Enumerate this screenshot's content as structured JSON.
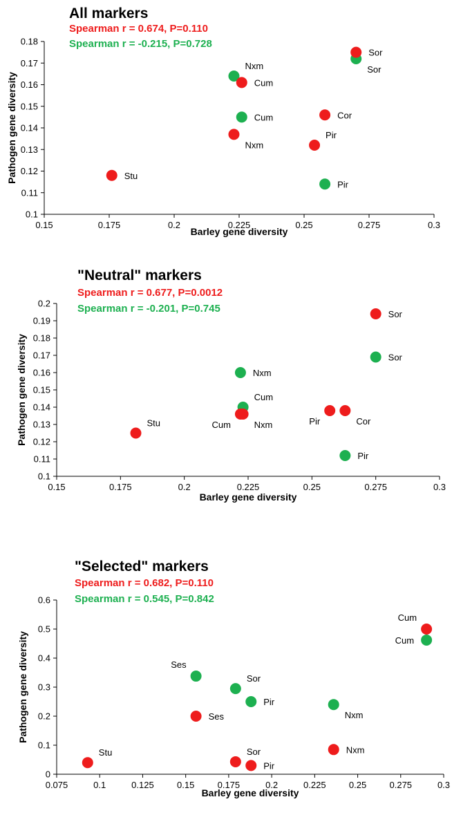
{
  "colors": {
    "red": "#ee1c1c",
    "green": "#1db050"
  },
  "chart_data": [
    {
      "type": "scatter",
      "title": "All markers",
      "stats": [
        {
          "text": "Spearman r = 0.674, P=0.110",
          "color": "red"
        },
        {
          "text": "Spearman r = -0.215, P=0.728",
          "color": "green"
        }
      ],
      "xlabel": "Barley gene diversity",
      "ylabel": "Pathogen  gene diversity",
      "xlim": [
        0.15,
        0.3
      ],
      "ylim": [
        0.1,
        0.18
      ],
      "xticks": [
        "0.15",
        "0.175",
        "0.2",
        "0.225",
        "0.25",
        "0.275",
        "0.3"
      ],
      "yticks": [
        "0.1",
        "0.11",
        "0.12",
        "0.13",
        "0.14",
        "0.15",
        "0.16",
        "0.17",
        "0.18"
      ],
      "points": [
        {
          "x": 0.176,
          "y": 0.118,
          "color": "red",
          "label": "Stu",
          "pos": "right"
        },
        {
          "x": 0.223,
          "y": 0.137,
          "color": "red",
          "label": "Nxm",
          "pos": "below-right"
        },
        {
          "x": 0.226,
          "y": 0.161,
          "color": "red",
          "label": "Cum",
          "pos": "right"
        },
        {
          "x": 0.254,
          "y": 0.132,
          "color": "red",
          "label": "Pir",
          "pos": "above-right"
        },
        {
          "x": 0.258,
          "y": 0.146,
          "color": "red",
          "label": "Cor",
          "pos": "right"
        },
        {
          "x": 0.27,
          "y": 0.175,
          "color": "red",
          "label": "Sor",
          "pos": "right"
        },
        {
          "x": 0.223,
          "y": 0.164,
          "color": "green",
          "label": "Nxm",
          "pos": "above-right"
        },
        {
          "x": 0.226,
          "y": 0.145,
          "color": "green",
          "label": "Cum",
          "pos": "right"
        },
        {
          "x": 0.258,
          "y": 0.114,
          "color": "green",
          "label": "Pir",
          "pos": "right"
        },
        {
          "x": 0.27,
          "y": 0.172,
          "color": "green",
          "label": "Sor",
          "pos": "below-right"
        }
      ]
    },
    {
      "type": "scatter",
      "title": "\"Neutral\" markers",
      "stats": [
        {
          "text": "Spearman r = 0.677, P=0.0012",
          "color": "red"
        },
        {
          "text": "Spearman r = -0.201, P=0.745",
          "color": "green"
        }
      ],
      "xlabel": "Barley gene diversity",
      "ylabel": "Pathogen  gene diversity",
      "xlim": [
        0.15,
        0.3
      ],
      "ylim": [
        0.1,
        0.2
      ],
      "xticks": [
        "0.15",
        "0.175",
        "0.2",
        "0.225",
        "0.25",
        "0.275",
        "0.3"
      ],
      "yticks": [
        "0.1",
        "0.11",
        "0.12",
        "0.13",
        "0.14",
        "0.15",
        "0.16",
        "0.17",
        "0.18",
        "0.19",
        "0.2"
      ],
      "points": [
        {
          "x": 0.181,
          "y": 0.125,
          "color": "red",
          "label": "Stu",
          "pos": "above-right"
        },
        {
          "x": 0.222,
          "y": 0.136,
          "color": "red",
          "label": "Cum",
          "pos": "below-left"
        },
        {
          "x": 0.223,
          "y": 0.136,
          "color": "red",
          "label": "Nxm",
          "pos": "below-right"
        },
        {
          "x": 0.257,
          "y": 0.138,
          "color": "red",
          "label": "Pir",
          "pos": "below-left"
        },
        {
          "x": 0.263,
          "y": 0.138,
          "color": "red",
          "label": "Cor",
          "pos": "below-right"
        },
        {
          "x": 0.275,
          "y": 0.194,
          "color": "red",
          "label": "Sor",
          "pos": "right"
        },
        {
          "x": 0.222,
          "y": 0.16,
          "color": "green",
          "label": "Nxm",
          "pos": "right"
        },
        {
          "x": 0.223,
          "y": 0.14,
          "color": "green",
          "label": "Cum",
          "pos": "above-right"
        },
        {
          "x": 0.263,
          "y": 0.112,
          "color": "green",
          "label": "Pir",
          "pos": "right"
        },
        {
          "x": 0.263,
          "y": 0.138,
          "color": "green",
          "label": "Cor",
          "pos": "above-right",
          "hidden": true
        },
        {
          "x": 0.275,
          "y": 0.169,
          "color": "green",
          "label": "Sor",
          "pos": "right"
        }
      ]
    },
    {
      "type": "scatter",
      "title": "\"Selected\" markers",
      "stats": [
        {
          "text": "Spearman r = 0.682, P=0.110",
          "color": "red"
        },
        {
          "text": "Spearman r = 0.545, P=0.842",
          "color": "green"
        }
      ],
      "xlabel": "Barley gene diversity",
      "ylabel": "Pathogen  gene diversity",
      "xlim": [
        0.075,
        0.3
      ],
      "ylim": [
        0,
        0.6
      ],
      "xticks": [
        "0.075",
        "0.1",
        "0.125",
        "0.15",
        "0.175",
        "0.2",
        "0.225",
        "0.25",
        "0.275",
        "0.3"
      ],
      "yticks": [
        "0",
        "0.1",
        "0.2",
        "0.3",
        "0.4",
        "0.5",
        "0.6"
      ],
      "points": [
        {
          "x": 0.093,
          "y": 0.04,
          "color": "red",
          "label": "Stu",
          "pos": "above-right"
        },
        {
          "x": 0.156,
          "y": 0.2,
          "color": "red",
          "label": "Ses",
          "pos": "right"
        },
        {
          "x": 0.179,
          "y": 0.043,
          "color": "red",
          "label": "Sor",
          "pos": "above-right"
        },
        {
          "x": 0.188,
          "y": 0.03,
          "color": "red",
          "label": "Pir",
          "pos": "right"
        },
        {
          "x": 0.236,
          "y": 0.085,
          "color": "red",
          "label": "Nxm",
          "pos": "right"
        },
        {
          "x": 0.29,
          "y": 0.5,
          "color": "red",
          "label": "Cum",
          "pos": "above-left"
        },
        {
          "x": 0.156,
          "y": 0.338,
          "color": "green",
          "label": "Ses",
          "pos": "above-left"
        },
        {
          "x": 0.179,
          "y": 0.295,
          "color": "green",
          "label": "Sor",
          "pos": "above-right"
        },
        {
          "x": 0.188,
          "y": 0.25,
          "color": "green",
          "label": "Pir",
          "pos": "right"
        },
        {
          "x": 0.236,
          "y": 0.24,
          "color": "green",
          "label": "Nxm",
          "pos": "below-right"
        },
        {
          "x": 0.29,
          "y": 0.462,
          "color": "green",
          "label": "Cum",
          "pos": "left"
        }
      ]
    }
  ]
}
